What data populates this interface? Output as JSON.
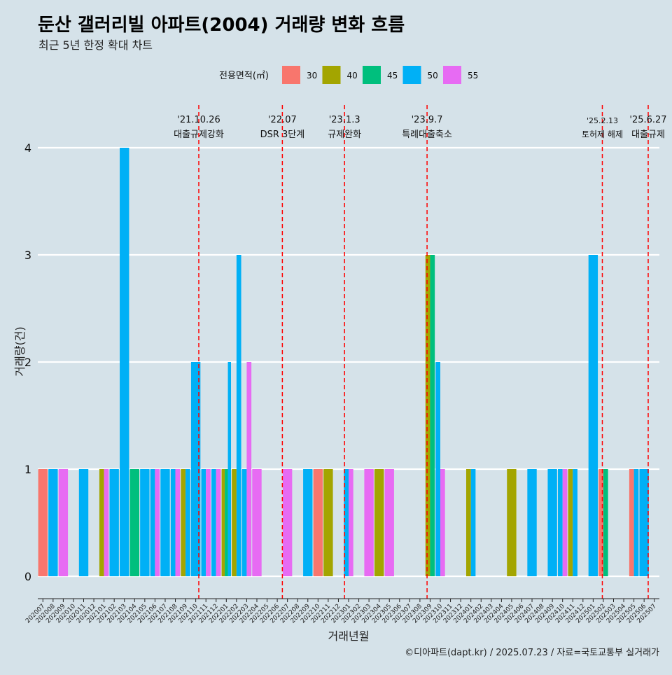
{
  "chart_data": {
    "type": "bar",
    "title": "둔산 갤러리빌 아파트(2004) 거래량 변화 흐름",
    "subtitle": "최근 5년 한정 확대 차트",
    "xlabel": "거래년월",
    "ylabel": "거래량(건)",
    "ylim": [
      0,
      4
    ],
    "y_ticks": [
      0,
      1,
      2,
      3,
      4
    ],
    "legend_title": "전용면적(㎡)",
    "legend_position": "top",
    "grid": true,
    "caption": "©디아파트(dapt.kr) / 2025.07.23 / 자료=국토교통부 실거래가",
    "colors": {
      "30": "#f8766d",
      "40": "#a3a500",
      "45": "#00bf7d",
      "50": "#00b0f6",
      "55": "#e76bf3"
    },
    "series_names": [
      "30",
      "40",
      "45",
      "50",
      "55"
    ],
    "categories": [
      "202007",
      "202008",
      "202009",
      "202010",
      "202011",
      "202012",
      "202101",
      "202102",
      "202103",
      "202104",
      "202105",
      "202106",
      "202107",
      "202108",
      "202109",
      "202110",
      "202111",
      "202112",
      "202201",
      "202202",
      "202203",
      "202204",
      "202205",
      "202206",
      "202207",
      "202208",
      "202209",
      "202210",
      "202211",
      "202212",
      "202301",
      "202302",
      "202303",
      "202304",
      "202305",
      "202306",
      "202307",
      "202308",
      "202309",
      "202310",
      "202311",
      "202312",
      "202401",
      "202402",
      "202403",
      "202404",
      "202405",
      "202406",
      "202407",
      "202408",
      "202409",
      "202410",
      "202411",
      "202412",
      "202501",
      "202502",
      "202503",
      "202504",
      "202505",
      "202506",
      "202507"
    ],
    "bars": [
      {
        "month": "202007",
        "values": {
          "30": 1
        }
      },
      {
        "month": "202008",
        "values": {
          "50": 1
        }
      },
      {
        "month": "202009",
        "values": {
          "55": 1
        }
      },
      {
        "month": "202011",
        "values": {
          "50": 1
        }
      },
      {
        "month": "202101",
        "values": {
          "40": 1,
          "55": 1
        }
      },
      {
        "month": "202102",
        "values": {
          "50": 1
        }
      },
      {
        "month": "202103",
        "values": {
          "50": 4
        }
      },
      {
        "month": "202104",
        "values": {
          "45": 1
        }
      },
      {
        "month": "202105",
        "values": {
          "50": 1
        }
      },
      {
        "month": "202106",
        "values": {
          "50": 1,
          "55": 1
        }
      },
      {
        "month": "202107",
        "values": {
          "50": 1
        }
      },
      {
        "month": "202108",
        "values": {
          "50": 1,
          "55": 1
        }
      },
      {
        "month": "202109",
        "values": {
          "40": 1,
          "50": 1
        }
      },
      {
        "month": "202110",
        "values": {
          "50": 2
        }
      },
      {
        "month": "202111",
        "values": {
          "50": 1,
          "55": 1
        }
      },
      {
        "month": "202112",
        "values": {
          "50": 1,
          "55": 1
        }
      },
      {
        "month": "202201",
        "values": {
          "40": 1,
          "45": 1,
          "50": 2
        }
      },
      {
        "month": "202202",
        "values": {
          "40": 1,
          "50": 3
        }
      },
      {
        "month": "202203",
        "values": {
          "50": 1,
          "55": 2
        }
      },
      {
        "month": "202204",
        "values": {
          "55": 1
        }
      },
      {
        "month": "202207",
        "values": {
          "55": 1
        }
      },
      {
        "month": "202209",
        "values": {
          "50": 1
        }
      },
      {
        "month": "202210",
        "values": {
          "30": 1
        }
      },
      {
        "month": "202211",
        "values": {
          "40": 1
        }
      },
      {
        "month": "202301",
        "values": {
          "50": 1,
          "55": 1
        }
      },
      {
        "month": "202303",
        "values": {
          "55": 1
        }
      },
      {
        "month": "202304",
        "values": {
          "40": 1
        }
      },
      {
        "month": "202305",
        "values": {
          "55": 1
        }
      },
      {
        "month": "202309",
        "values": {
          "40": 3,
          "45": 3
        }
      },
      {
        "month": "202310",
        "values": {
          "50": 2,
          "55": 1
        }
      },
      {
        "month": "202401",
        "values": {
          "40": 1,
          "50": 1
        }
      },
      {
        "month": "202405",
        "values": {
          "40": 1
        }
      },
      {
        "month": "202407",
        "values": {
          "50": 1
        }
      },
      {
        "month": "202409",
        "values": {
          "50": 1
        }
      },
      {
        "month": "202410",
        "values": {
          "50": 1,
          "55": 1
        }
      },
      {
        "month": "202411",
        "values": {
          "40": 1,
          "50": 1
        }
      },
      {
        "month": "202501",
        "values": {
          "50": 3
        }
      },
      {
        "month": "202502",
        "values": {
          "30": 1,
          "45": 1
        }
      },
      {
        "month": "202505",
        "values": {
          "30": 1,
          "50": 1
        }
      },
      {
        "month": "202506",
        "values": {
          "50": 1
        }
      }
    ],
    "events": [
      {
        "date": "'21.10.26",
        "label": "대출규제강화",
        "month": "202110",
        "offset": 0.8
      },
      {
        "date": "'22.07",
        "label": "DSR 3단계",
        "month": "202207",
        "offset": 0
      },
      {
        "date": "'23.1.3",
        "label": "규제완화",
        "month": "202301",
        "offset": 0.1
      },
      {
        "date": "'23.9.7",
        "label": "특례대출축소",
        "month": "202309",
        "offset": 0.2
      },
      {
        "date": "'25.2.13",
        "label": "토허제 해제",
        "month": "202502",
        "offset": 0.4
      },
      {
        "date": "'25.6.27",
        "label": "대출규제",
        "month": "202506",
        "offset": 0.9
      }
    ]
  }
}
